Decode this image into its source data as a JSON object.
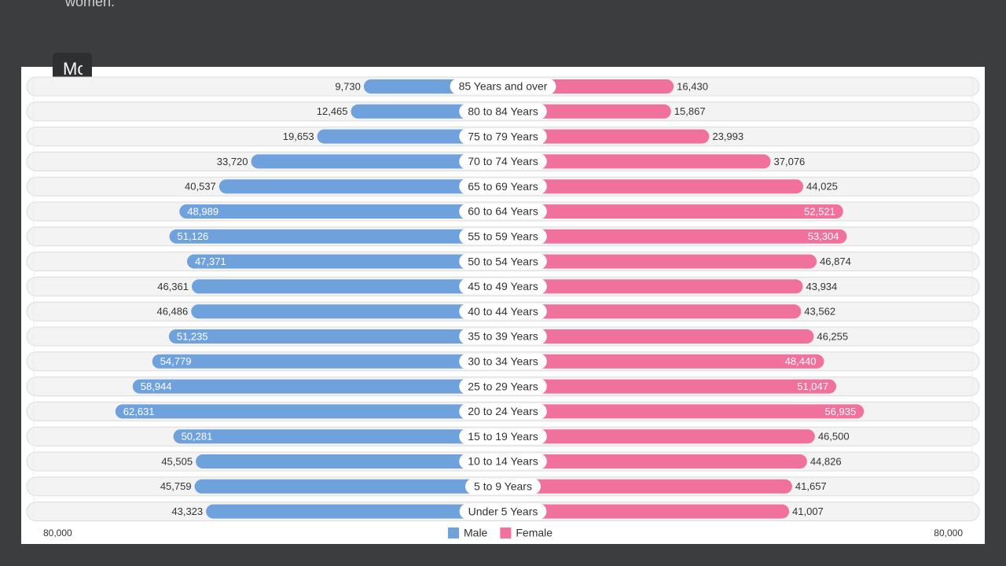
{
  "page": {
    "top_text": "women.",
    "button_label": "Mc"
  },
  "chart_data": {
    "type": "pyramid",
    "categories": [
      "85 Years and over",
      "80 to 84 Years",
      "75 to 79 Years",
      "70 to 74 Years",
      "65 to 69 Years",
      "60 to 64 Years",
      "55 to 59 Years",
      "50 to 54 Years",
      "45 to 49 Years",
      "40 to 44 Years",
      "35 to 39 Years",
      "30 to 34 Years",
      "25 to 29 Years",
      "20 to 24 Years",
      "15 to 19 Years",
      "10 to 14 Years",
      "5 to 9 Years",
      "Under 5 Years"
    ],
    "series": [
      {
        "name": "Male",
        "color": "#6fa1dd",
        "side": "left",
        "values": [
          9730,
          12465,
          19653,
          33720,
          40537,
          48989,
          51126,
          47371,
          46361,
          46486,
          51235,
          54779,
          58944,
          62631,
          50281,
          45505,
          45759,
          43323
        ],
        "value_labels": [
          "9,730",
          "12,465",
          "19,653",
          "33,720",
          "40,537",
          "48,989",
          "51,126",
          "47,371",
          "46,361",
          "46,486",
          "51,235",
          "54,779",
          "58,944",
          "62,631",
          "50,281",
          "45,505",
          "45,759",
          "43,323"
        ]
      },
      {
        "name": "Female",
        "color": "#f0719b",
        "side": "right",
        "values": [
          16430,
          15867,
          23993,
          37076,
          44025,
          52521,
          53304,
          46874,
          43934,
          43562,
          46255,
          48440,
          51047,
          56935,
          46500,
          44826,
          41657,
          41007
        ],
        "value_labels": [
          "16,430",
          "15,867",
          "23,993",
          "37,076",
          "44,025",
          "52,521",
          "53,304",
          "46,874",
          "43,934",
          "43,562",
          "46,255",
          "48,440",
          "51,047",
          "56,935",
          "46,500",
          "44,826",
          "41,657",
          "41,007"
        ]
      }
    ],
    "xlim": [
      0,
      80000
    ],
    "xticks": [
      {
        "value": 80000,
        "label": "80,000"
      }
    ]
  }
}
